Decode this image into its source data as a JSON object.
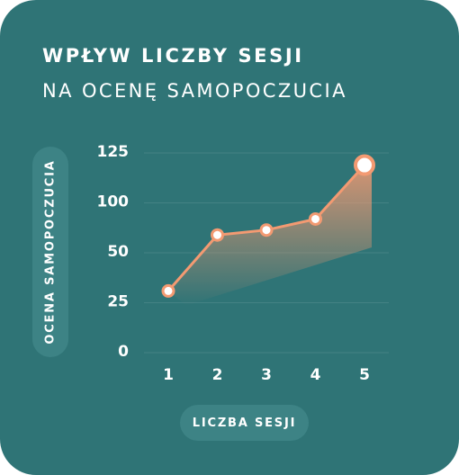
{
  "header": {
    "title": "WPŁYW LICZBY SESJI",
    "subtitle": "NA OCENĘ SAMOPOCZUCIA"
  },
  "colors": {
    "card_background": "#2f7476",
    "label_pill": "#3d8385",
    "line": "#f39a72",
    "marker_fill": "#ffffff",
    "text": "#ffffff"
  },
  "chart_data": {
    "type": "line",
    "title": "WPŁYW LICZBY SESJI NA OCENĘ SAMOPOCZUCIA",
    "xlabel": "LICZBA SESJI",
    "ylabel": "OCENA SAMOPOCZUCIA",
    "categories": [
      "1",
      "2",
      "3",
      "4",
      "5"
    ],
    "y_ticks": [
      "0",
      "25",
      "50",
      "100",
      "125"
    ],
    "series": [
      {
        "values": [
          30,
          66,
          71,
          82,
          118
        ]
      }
    ],
    "grid": true,
    "area_fill": "gradient",
    "highlight_last_point": true
  }
}
